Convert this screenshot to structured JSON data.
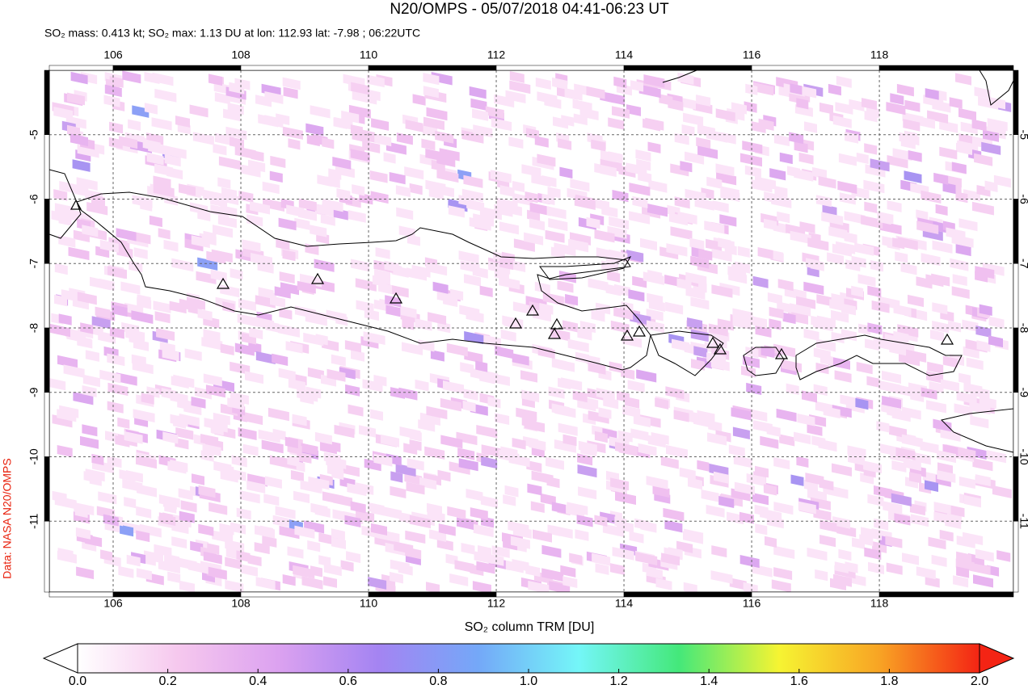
{
  "chart_data": {
    "type": "map",
    "title": "N20/OMPS - 05/07/2018 04:41-06:23 UT",
    "subtitle": "SO₂ mass: 0.413 kt; SO₂ max: 1.13 DU at lon: 112.93 lat: -7.98 ; 06:22UTC",
    "source": "Data: NASA N20/OMPS",
    "xlim": [
      105,
      120.1
    ],
    "xticks": [
      106,
      108,
      110,
      112,
      114,
      116,
      118
    ],
    "ylim": [
      -12.1,
      -4.0
    ],
    "yticks": [
      -5,
      -6,
      -7,
      -8,
      -9,
      -10,
      -11
    ],
    "grid": true,
    "colorbar": {
      "label": "SO₂ column TRM [DU]",
      "lim": [
        0,
        2
      ],
      "ticks": [
        {
          "value": 0,
          "label": "0.0"
        },
        0.2,
        0.4,
        0.6,
        0.8,
        {
          "value": 1,
          "label": "1.0"
        },
        1.2,
        1.4,
        1.6,
        1.8,
        {
          "value": 2,
          "label": "2.0"
        }
      ],
      "colors": [
        "#ffffff",
        "#f6c8ee",
        "#dca2f0",
        "#a484f2",
        "#74a8f8",
        "#74f6f8",
        "#44e87a",
        "#f6f432",
        "#f8a424",
        "#f42414"
      ]
    }
  }
}
